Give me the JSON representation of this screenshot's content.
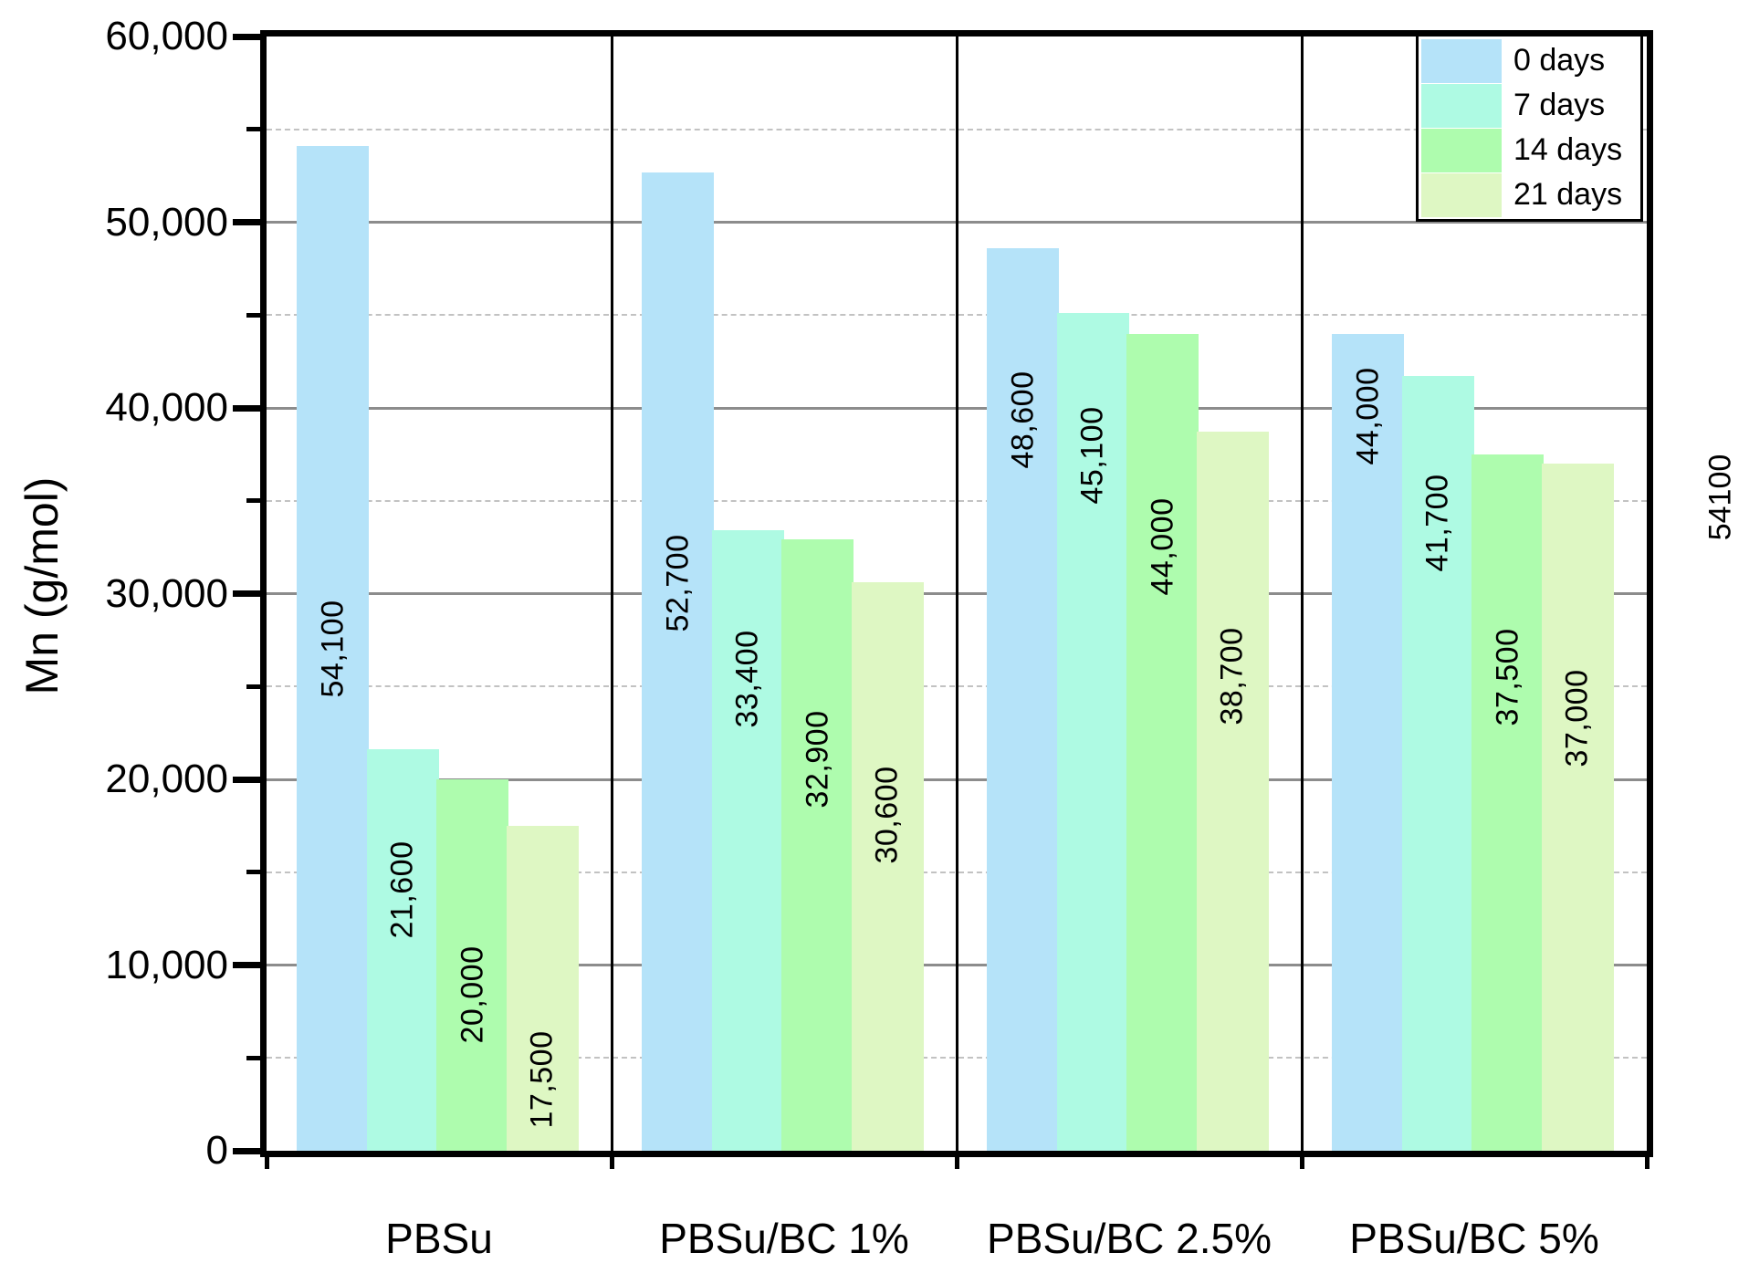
{
  "chart_data": {
    "type": "bar",
    "title": "",
    "ylabel": "Mn (g/mol)",
    "xlabel": "",
    "categories": [
      "PBSu",
      "PBSu/BC 1%",
      "PBSu/BC 2.5%",
      "PBSu/BC 5%"
    ],
    "series": [
      {
        "name": "0 days",
        "color": "#b5e3f9",
        "values": [
          54100,
          52700,
          48600,
          44000
        ],
        "labels": [
          "54,100",
          "52,700",
          "48,600",
          "44,000"
        ],
        "label_pos": [
          0.5,
          0.42,
          0.19,
          0.1
        ]
      },
      {
        "name": "7 days",
        "color": "#aefae3",
        "values": [
          21600,
          33400,
          45100,
          41700
        ],
        "labels": [
          "21,600",
          "33,400",
          "45,100",
          "41,700"
        ],
        "label_pos": [
          0.35,
          0.24,
          0.17,
          0.19
        ]
      },
      {
        "name": "14 days",
        "color": "#aefcae",
        "values": [
          20000,
          32900,
          44000,
          37500
        ],
        "labels": [
          "20,000",
          "32,900",
          "44,000",
          "37,500"
        ],
        "label_pos": [
          0.58,
          0.36,
          0.26,
          0.32
        ]
      },
      {
        "name": "21 days",
        "color": "#def7c3",
        "values": [
          17500,
          30600,
          38700,
          37000
        ],
        "labels": [
          "17,500",
          "30,600",
          "38,700",
          "37,000"
        ],
        "label_pos": [
          0.78,
          0.41,
          0.34,
          0.37
        ]
      }
    ],
    "ylim": [
      0,
      60000
    ],
    "ytick_major_interval": 10000,
    "ytick_minor_interval": 5000,
    "ytick_labels": [
      "0",
      "10,000",
      "20,000",
      "30,000",
      "40,000",
      "50,000",
      "60,000"
    ],
    "grid": {
      "major_color": "#8c8c8c",
      "minor_color": "#c2c2c2",
      "minor_style": "dashed",
      "major_on": true,
      "minor_on": true
    },
    "legend": {
      "position": "top-right",
      "items": [
        "0 days",
        "7 days",
        "14 days",
        "21 days"
      ]
    },
    "annotations": [
      {
        "text": "54100",
        "rotation": -90
      }
    ],
    "axis_color": "#000000"
  }
}
